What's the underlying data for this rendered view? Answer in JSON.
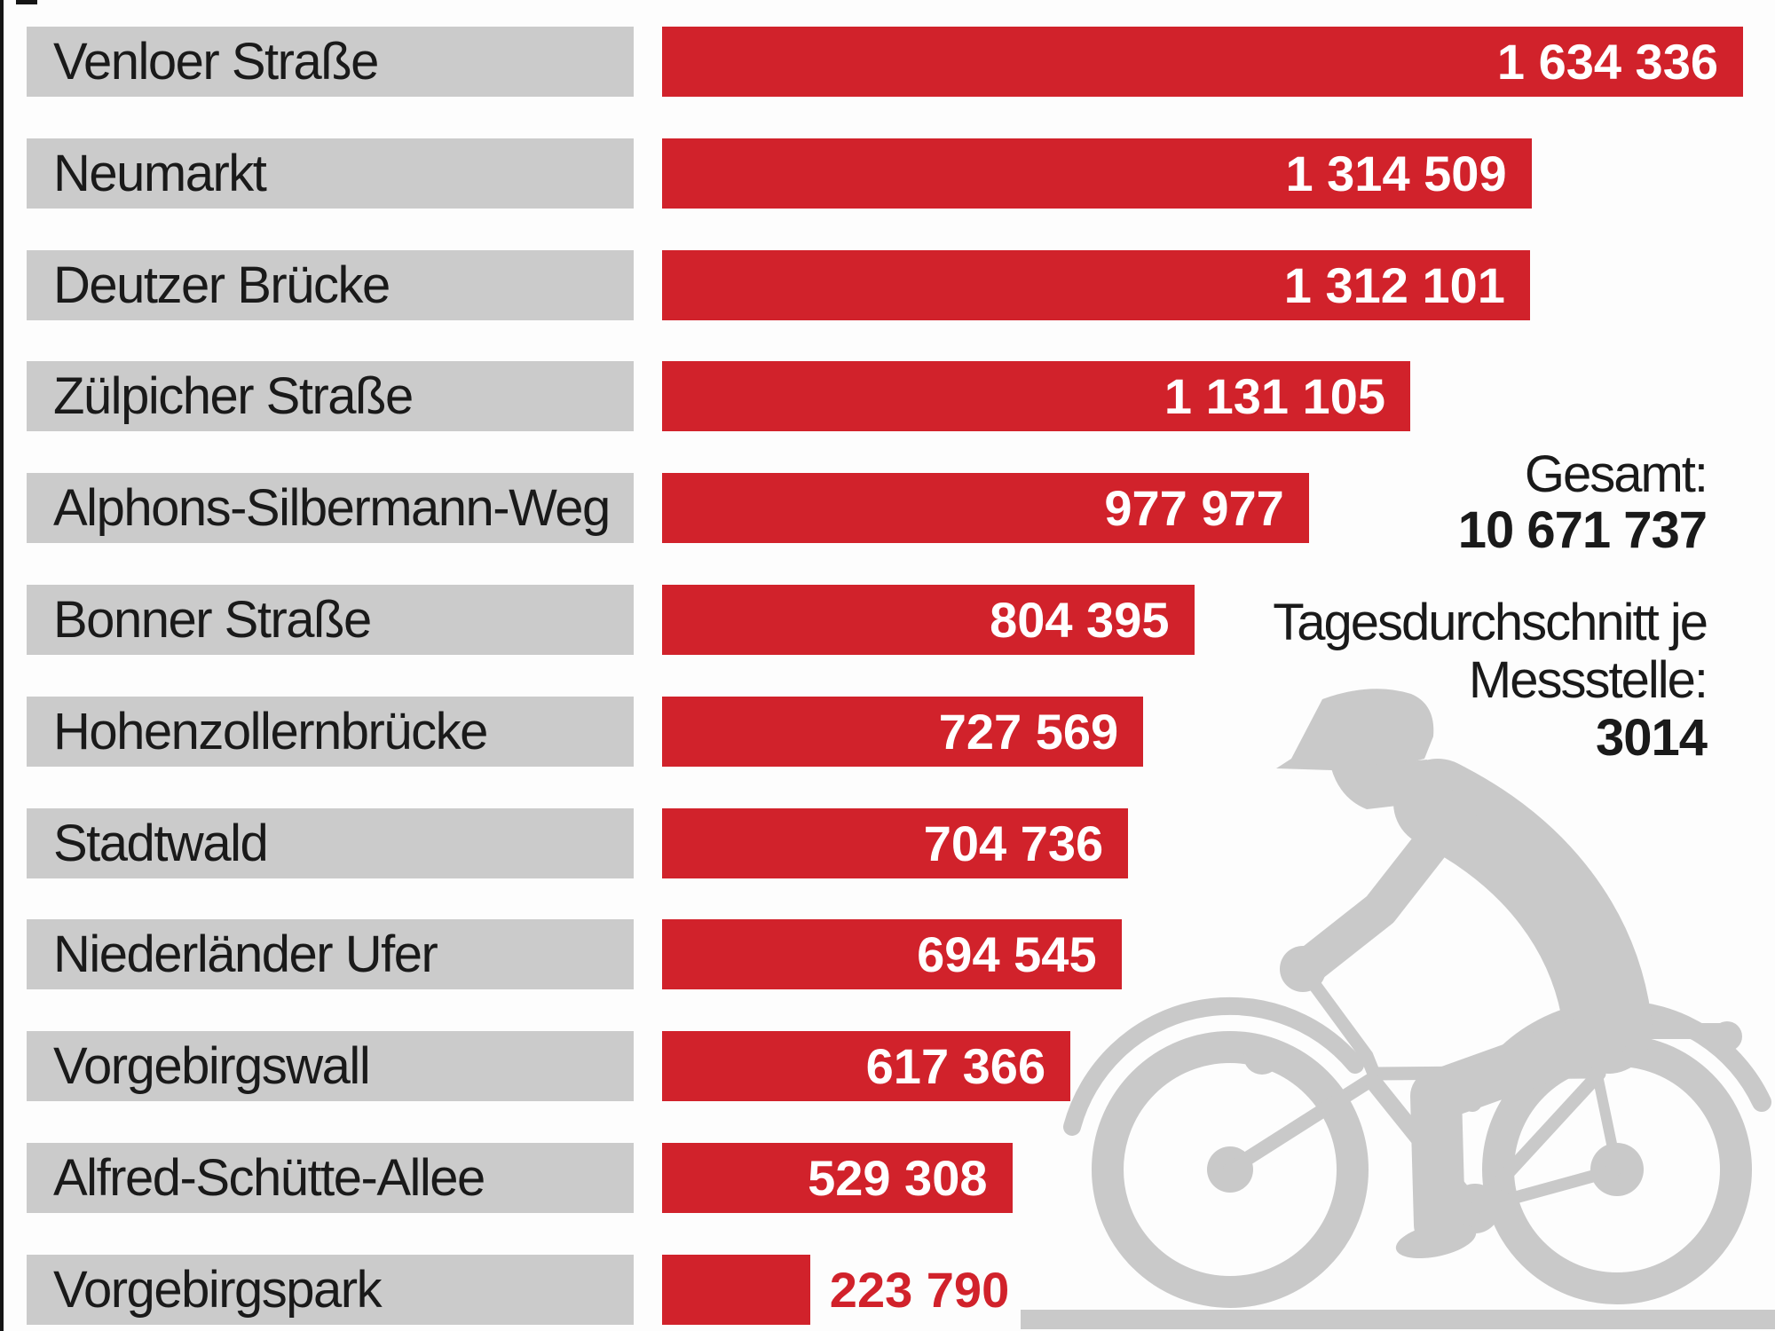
{
  "chart_data": {
    "type": "bar",
    "orientation": "horizontal",
    "categories": [
      "Venloer Straße",
      "Neumarkt",
      "Deutzer Brücke",
      "Zülpicher Straße",
      "Alphons-Silbermann-Weg",
      "Bonner Straße",
      "Hohenzollernbrücke",
      "Stadtwald",
      "Niederländer Ufer",
      "Vorgebirgswall",
      "Alfred-Schütte-Allee",
      "Vorgebirgspark"
    ],
    "values": [
      1634336,
      1314509,
      1312101,
      1131105,
      977977,
      804395,
      727569,
      704736,
      694545,
      617366,
      529308,
      223790
    ],
    "values_formatted": [
      "1 634 336",
      "1 314 509",
      "1 312 101",
      "1 131 105",
      "977 977",
      "804 395",
      "727 569",
      "704 736",
      "694 545",
      "617 366",
      "529 308",
      "223 790"
    ],
    "xmax": 1634336,
    "gridlines": false,
    "legend": "none",
    "bar_color": "#d1222b",
    "label_box_color": "#cbcbcb",
    "value_label_inside_color": "#ffffff",
    "value_label_outside_color": "#d1222b"
  },
  "summary": {
    "gesamt_label": "Gesamt:",
    "gesamt_value": "10 671 737",
    "avg_label_line1": "Tagesdurchschnitt je",
    "avg_label_line2": "Messstelle:",
    "avg_value": "3014"
  },
  "graphics": {
    "cyclist_icon": "cyclist-silhouette",
    "silhouette_color": "#c9c9c9"
  }
}
